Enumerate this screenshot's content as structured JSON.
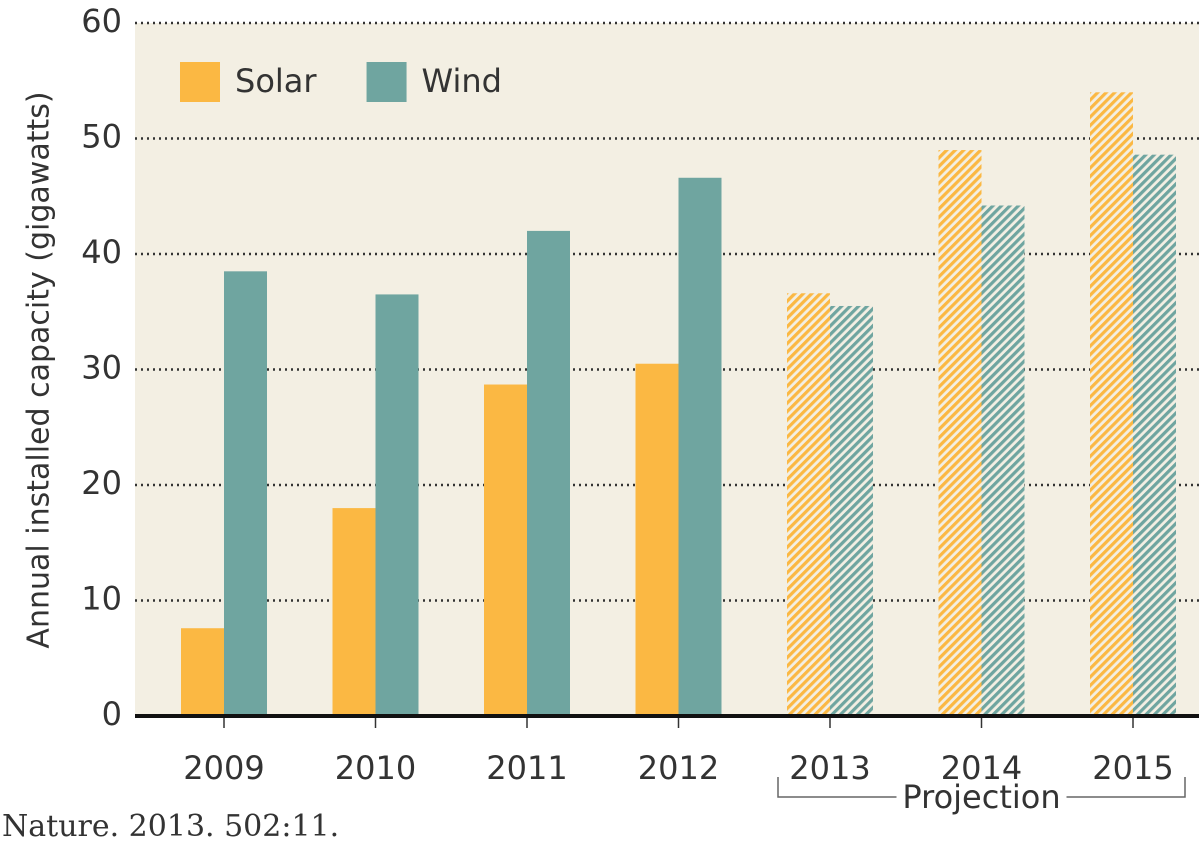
{
  "chart_data": {
    "type": "bar",
    "ylabel": "Annual installed capacity (gigawatts)",
    "categories": [
      "2009",
      "2010",
      "2011",
      "2012",
      "2013",
      "2014",
      "2015"
    ],
    "series": [
      {
        "name": "Solar",
        "color": "#fbb843",
        "values": [
          7.6,
          18.0,
          28.7,
          30.5,
          36.6,
          49.0,
          54.0
        ]
      },
      {
        "name": "Wind",
        "color": "#6fa5a0",
        "values": [
          38.5,
          36.5,
          42.0,
          46.6,
          35.5,
          44.2,
          48.6
        ]
      }
    ],
    "projected": [
      false,
      false,
      false,
      false,
      true,
      true,
      true
    ],
    "projection_label": "Projection",
    "ylim": [
      0,
      60
    ],
    "yticks": [
      0,
      10,
      20,
      30,
      40,
      50,
      60
    ],
    "grid": true,
    "legend": "top-left",
    "source": "Nature.  2013.  502:11."
  }
}
